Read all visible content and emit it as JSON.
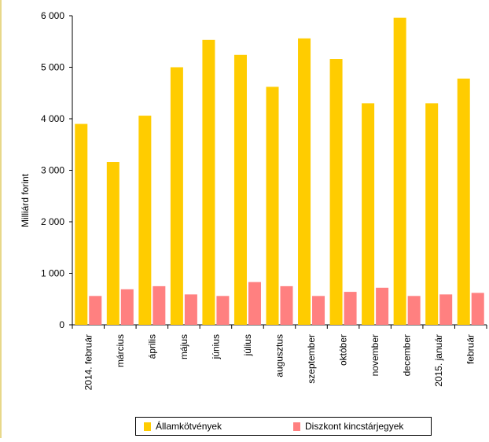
{
  "chart_data": {
    "type": "bar",
    "ylabel": "Milliárd forint",
    "ylim": [
      0,
      6000
    ],
    "yticks": [
      0,
      1000,
      2000,
      3000,
      4000,
      5000,
      6000
    ],
    "yticklabels": [
      "0",
      "1 000",
      "2 000",
      "3 000",
      "4 000",
      "5 000",
      "6 000"
    ],
    "categories": [
      "2014. február",
      "március",
      "április",
      "május",
      "június",
      "július",
      "augusztus",
      "szeptember",
      "október",
      "november",
      "december",
      "2015. január",
      "február"
    ],
    "series": [
      {
        "name": "Államkötvények",
        "color": "#ffcc00",
        "values": [
          3900,
          3160,
          4060,
          5000,
          5530,
          5240,
          4620,
          5560,
          5160,
          4300,
          5960,
          4300,
          4780
        ]
      },
      {
        "name": "Diszkont kincstárjegyek",
        "color": "#ff8080",
        "values": [
          560,
          690,
          750,
          590,
          560,
          830,
          750,
          560,
          640,
          720,
          560,
          590,
          620
        ]
      }
    ],
    "grid": false,
    "legend": "bottom"
  },
  "legend": {
    "items": [
      {
        "label": "Államkötvények",
        "color": "#ffcc00"
      },
      {
        "label": "Diszkont kincstárjegyek",
        "color": "#ff8080"
      }
    ]
  }
}
